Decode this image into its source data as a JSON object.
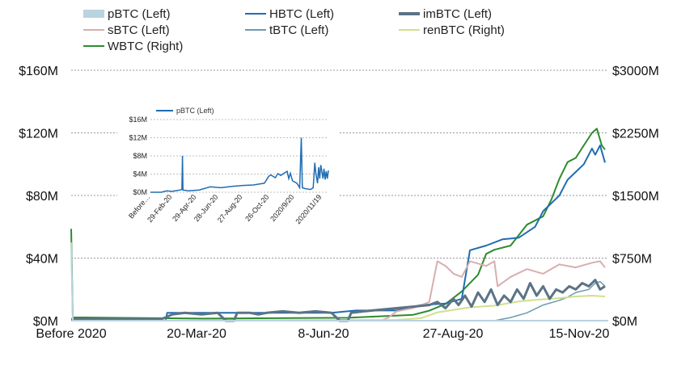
{
  "chart_data": [
    {
      "type": "line",
      "legend": [
        {
          "label": "pBTC (Left)",
          "color": "#b9d3df",
          "style": "band"
        },
        {
          "label": "HBTC (Left)",
          "color": "#1f6db1",
          "style": "line"
        },
        {
          "label": "imBTC (Left)",
          "color": "#5c7385",
          "style": "thick"
        },
        {
          "label": "sBTC (Left)",
          "color": "#d8aeae",
          "style": "line"
        },
        {
          "label": "tBTC (Left)",
          "color": "#6a9cb0",
          "style": "line"
        },
        {
          "label": "renBTC (Right)",
          "color": "#cfe08c",
          "style": "line"
        },
        {
          "label": "WBTC (Right)",
          "color": "#2e8b2e",
          "style": "line"
        }
      ],
      "x_ticks": [
        "Before 2020",
        "20-Mar-20",
        "8-Jun-20",
        "27-Aug-20",
        "15-Nov-20"
      ],
      "y_left_ticks": [
        "$0M",
        "$40M",
        "$80M",
        "$120M",
        "$160M"
      ],
      "y_right_ticks": [
        "$0M",
        "$750M",
        "$1500M",
        "$2250M",
        "$3000M"
      ],
      "ylim_left": [
        0,
        160
      ],
      "ylim_right": [
        0,
        3000
      ],
      "x_domain": [
        0,
        330
      ],
      "grid": true,
      "series": [
        {
          "name": "WBTC (Right)",
          "axis": "right",
          "color": "#2e8b2e",
          "width": 2,
          "points": [
            [
              0,
              1100
            ],
            [
              1,
              40
            ],
            [
              80,
              25
            ],
            [
              170,
              35
            ],
            [
              210,
              70
            ],
            [
              220,
              120
            ],
            [
              230,
              200
            ],
            [
              240,
              350
            ],
            [
              250,
              550
            ],
            [
              255,
              800
            ],
            [
              260,
              850
            ],
            [
              270,
              900
            ],
            [
              280,
              1150
            ],
            [
              290,
              1250
            ],
            [
              295,
              1450
            ],
            [
              300,
              1700
            ],
            [
              305,
              1900
            ],
            [
              310,
              1950
            ],
            [
              315,
              2100
            ],
            [
              320,
              2250
            ],
            [
              323,
              2300
            ],
            [
              326,
              2100
            ],
            [
              328,
              2050
            ]
          ]
        },
        {
          "name": "HBTC (Left)",
          "axis": "left",
          "color": "#1f6db1",
          "width": 2,
          "points": [
            [
              0,
              0
            ],
            [
              58,
              0
            ],
            [
              59,
              5
            ],
            [
              160,
              5
            ],
            [
              175,
              6.5
            ],
            [
              200,
              6.5
            ],
            [
              215,
              10
            ],
            [
              230,
              11
            ],
            [
              240,
              14
            ],
            [
              245,
              45
            ],
            [
              255,
              48
            ],
            [
              265,
              52
            ],
            [
              275,
              53
            ],
            [
              285,
              60
            ],
            [
              290,
              70
            ],
            [
              295,
              75
            ],
            [
              300,
              80
            ],
            [
              305,
              90
            ],
            [
              310,
              95
            ],
            [
              315,
              100
            ],
            [
              320,
              110
            ],
            [
              322,
              106
            ],
            [
              325,
              112
            ],
            [
              328,
              101
            ]
          ]
        },
        {
          "name": "sBTC (Left)",
          "axis": "left",
          "color": "#d8aeae",
          "width": 2,
          "points": [
            [
              0,
              0
            ],
            [
              190,
              0
            ],
            [
              195,
              2
            ],
            [
              200,
              6
            ],
            [
              210,
              8
            ],
            [
              220,
              12
            ],
            [
              225,
              38
            ],
            [
              230,
              35
            ],
            [
              235,
              30
            ],
            [
              240,
              28
            ],
            [
              245,
              38
            ],
            [
              255,
              35
            ],
            [
              260,
              38
            ],
            [
              262,
              22
            ],
            [
              270,
              28
            ],
            [
              280,
              33
            ],
            [
              290,
              30
            ],
            [
              300,
              36
            ],
            [
              310,
              34
            ],
            [
              320,
              37
            ],
            [
              325,
              38
            ],
            [
              328,
              34
            ]
          ]
        },
        {
          "name": "tBTC (Left)",
          "axis": "left",
          "color": "#6a9cb0",
          "width": 1.5,
          "points": [
            [
              260,
              0
            ],
            [
              270,
              2
            ],
            [
              280,
              5
            ],
            [
              290,
              10
            ],
            [
              300,
              13
            ],
            [
              305,
              15
            ],
            [
              310,
              18
            ],
            [
              318,
              20
            ],
            [
              322,
              24
            ],
            [
              325,
              25
            ],
            [
              328,
              22
            ]
          ]
        },
        {
          "name": "renBTC (Right)",
          "axis": "right",
          "color": "#cfe08c",
          "width": 2,
          "points": [
            [
              0,
              0
            ],
            [
              200,
              10
            ],
            [
              215,
              30
            ],
            [
              225,
              100
            ],
            [
              235,
              130
            ],
            [
              245,
              160
            ],
            [
              260,
              180
            ],
            [
              275,
              230
            ],
            [
              285,
              250
            ],
            [
              300,
              270
            ],
            [
              310,
              290
            ],
            [
              320,
              300
            ],
            [
              328,
              290
            ]
          ]
        },
        {
          "name": "imBTC (Left)",
          "axis": "left",
          "color": "#5c7385",
          "width": 3,
          "points": [
            [
              0,
              1
            ],
            [
              55,
              1
            ],
            [
              58,
              2
            ],
            [
              60,
              3
            ],
            [
              62,
              4
            ],
            [
              70,
              5
            ],
            [
              80,
              4
            ],
            [
              90,
              5
            ],
            [
              95,
              0
            ],
            [
              100,
              0
            ],
            [
              102,
              5
            ],
            [
              110,
              5
            ],
            [
              115,
              4
            ],
            [
              120,
              5
            ],
            [
              130,
              6
            ],
            [
              140,
              5
            ],
            [
              150,
              6
            ],
            [
              160,
              5
            ],
            [
              165,
              0
            ],
            [
              170,
              0
            ],
            [
              172,
              5
            ],
            [
              180,
              6
            ],
            [
              190,
              7
            ],
            [
              200,
              8
            ],
            [
              210,
              9
            ],
            [
              220,
              10
            ],
            [
              225,
              12
            ],
            [
              230,
              8
            ],
            [
              235,
              14
            ],
            [
              238,
              10
            ],
            [
              242,
              16
            ],
            [
              246,
              9
            ],
            [
              250,
              18
            ],
            [
              254,
              12
            ],
            [
              258,
              20
            ],
            [
              262,
              10
            ],
            [
              266,
              16
            ],
            [
              270,
              12
            ],
            [
              274,
              20
            ],
            [
              278,
              14
            ],
            [
              282,
              24
            ],
            [
              286,
              16
            ],
            [
              290,
              22
            ],
            [
              294,
              14
            ],
            [
              298,
              20
            ],
            [
              302,
              18
            ],
            [
              306,
              22
            ],
            [
              310,
              20
            ],
            [
              314,
              24
            ],
            [
              318,
              22
            ],
            [
              322,
              26
            ],
            [
              325,
              20
            ],
            [
              328,
              22
            ]
          ]
        },
        {
          "name": "pBTC (Left)",
          "axis": "left",
          "color": "#b9d3df",
          "width": 2,
          "points": [
            [
              0,
              50
            ],
            [
              1,
              0
            ],
            [
              330,
              0
            ]
          ]
        }
      ]
    },
    {
      "type": "line",
      "legend": [
        {
          "label": "pBTC (Left)",
          "color": "#1f6db1"
        }
      ],
      "x_ticks": [
        "Before…",
        "29-Feb-20",
        "29-Apr-20",
        "28-Jun-20",
        "27-Aug-20",
        "26-Oct-20",
        "2020/9/20",
        "2020/11/19"
      ],
      "y_ticks": [
        "$0M",
        "$4M",
        "$8M",
        "$12M",
        "$16M"
      ],
      "ylim": [
        0,
        16
      ],
      "x_domain": [
        0,
        328
      ],
      "grid": true,
      "series": [
        {
          "name": "pBTC (Left)",
          "color": "#1f6db1",
          "points": [
            [
              0,
              0
            ],
            [
              20,
              0
            ],
            [
              30,
              0.3
            ],
            [
              40,
              0.2
            ],
            [
              50,
              0.4
            ],
            [
              55,
              0.5
            ],
            [
              58,
              0.6
            ],
            [
              59,
              8
            ],
            [
              60,
              0.5
            ],
            [
              70,
              0.3
            ],
            [
              90,
              0.5
            ],
            [
              110,
              1.2
            ],
            [
              130,
              1
            ],
            [
              150,
              1.3
            ],
            [
              170,
              1.5
            ],
            [
              190,
              1.6
            ],
            [
              200,
              1.8
            ],
            [
              210,
              2
            ],
            [
              218,
              3.5
            ],
            [
              222,
              3.8
            ],
            [
              230,
              3.2
            ],
            [
              235,
              4.1
            ],
            [
              240,
              3.7
            ],
            [
              248,
              4.3
            ],
            [
              252,
              4.6
            ],
            [
              255,
              3
            ],
            [
              258,
              4.2
            ],
            [
              262,
              2.5
            ],
            [
              270,
              2
            ],
            [
              275,
              1
            ],
            [
              278,
              12
            ],
            [
              280,
              1
            ],
            [
              285,
              0.8
            ],
            [
              295,
              0.6
            ],
            [
              300,
              1
            ],
            [
              303,
              6.5
            ],
            [
              305,
              4
            ],
            [
              308,
              2
            ],
            [
              310,
              5.5
            ],
            [
              312,
              3
            ],
            [
              314,
              6
            ],
            [
              316,
              4.5
            ],
            [
              318,
              3
            ],
            [
              320,
              5.2
            ],
            [
              322,
              2.8
            ],
            [
              324,
              4.6
            ],
            [
              326,
              3
            ],
            [
              328,
              4.8
            ]
          ]
        }
      ]
    }
  ]
}
